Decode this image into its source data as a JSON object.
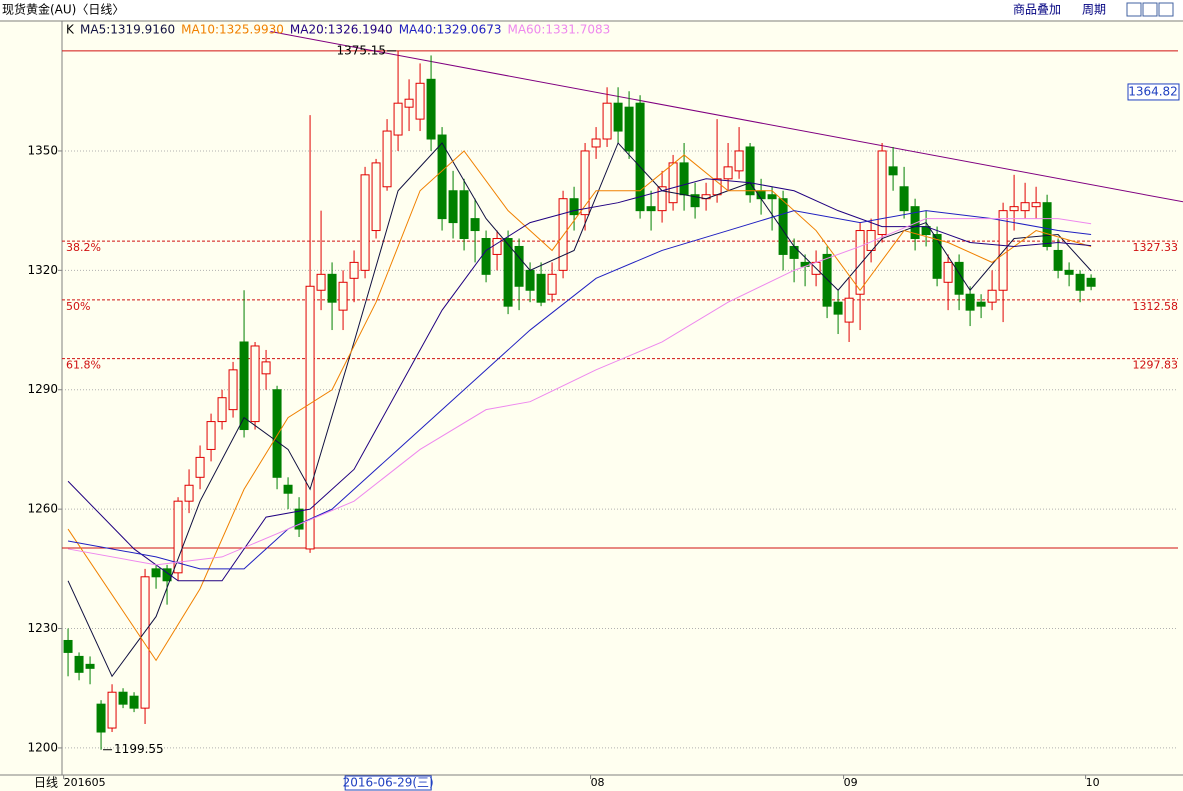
{
  "header": {
    "title": "现货黄金(AU)〈日线〉",
    "buttons": [
      "商品叠加",
      "周期"
    ]
  },
  "chart_data": {
    "type": "candlestick",
    "ylim": [
      1193.2,
      1382.4
    ],
    "yticks": [
      1200,
      1230,
      1260,
      1290,
      1320,
      1350
    ],
    "grid": true,
    "xlim": [
      -0.55,
      100.9
    ],
    "xticks": [
      {
        "value": -0.4,
        "label": "201605"
      },
      {
        "value": 47.5,
        "label": "08"
      },
      {
        "value": 70.5,
        "label": "09"
      },
      {
        "value": 92.5,
        "label": "10"
      }
    ],
    "period_label": "日线",
    "candles": {
      "name": "K",
      "up_color": "#e00000",
      "down_color": "#008000",
      "open": [
        1227,
        1223,
        1221,
        1211,
        1205,
        1214,
        1213,
        1210,
        1245,
        1245,
        1244,
        1262,
        1268,
        1275,
        1282,
        1285,
        1302,
        1282,
        1294,
        1290,
        1266,
        1260,
        1250,
        1315,
        1319,
        1310,
        1318,
        1320,
        1330,
        1341,
        1354,
        1361,
        1358,
        1368,
        1354,
        1340,
        1340,
        1333,
        1328,
        1324,
        1328,
        1326,
        1320,
        1319,
        1314,
        1320,
        1338,
        1334,
        1351,
        1353,
        1362,
        1361,
        1362,
        1336,
        1335,
        1337,
        1347,
        1339,
        1338,
        1339,
        1343,
        1345,
        1351,
        1340,
        1339,
        1338,
        1326,
        1322,
        1319,
        1324,
        1312,
        1307,
        1314,
        1325,
        1329,
        1346,
        1341,
        1336,
        1331,
        1329,
        1317,
        1322,
        1314,
        1312,
        1312,
        1315,
        1335,
        1335,
        1336,
        1337,
        1325,
        1320,
        1319,
        1318
      ],
      "high": [
        1230,
        1224,
        1223,
        1212,
        1216,
        1215,
        1214,
        1245,
        1246,
        1246,
        1263,
        1270,
        1276,
        1284,
        1290,
        1297,
        1315,
        1302,
        1300,
        1291,
        1268,
        1263,
        1359,
        1335,
        1322,
        1320,
        1325,
        1346,
        1348,
        1358,
        1375.15,
        1368,
        1372,
        1374,
        1356,
        1345,
        1343,
        1338,
        1330,
        1330,
        1330,
        1328,
        1322,
        1322,
        1322,
        1340,
        1341,
        1352,
        1356,
        1366,
        1366,
        1365,
        1364,
        1340,
        1345,
        1349,
        1352,
        1342,
        1342,
        1358,
        1352,
        1356,
        1352,
        1343,
        1341,
        1340,
        1328,
        1324,
        1325,
        1326,
        1315,
        1318,
        1332,
        1333,
        1352,
        1351,
        1346,
        1338,
        1335,
        1331,
        1324,
        1324,
        1316,
        1314,
        1320,
        1337,
        1344,
        1342,
        1341,
        1339,
        1328,
        1322,
        1320,
        1319
      ],
      "low": [
        1218,
        1217,
        1216,
        1199.55,
        1204,
        1210,
        1209,
        1206,
        1240,
        1236,
        1242,
        1259,
        1265,
        1272,
        1280,
        1283,
        1278,
        1280,
        1290,
        1265,
        1260,
        1253,
        1249,
        1310,
        1305,
        1305,
        1312,
        1318,
        1328,
        1340,
        1350,
        1355,
        1355,
        1350,
        1330,
        1328,
        1325,
        1322,
        1317,
        1320,
        1309,
        1310,
        1312,
        1311,
        1312,
        1318,
        1330,
        1330,
        1348,
        1351,
        1352,
        1348,
        1333,
        1330,
        1332,
        1335,
        1335,
        1333,
        1335,
        1337,
        1340,
        1343,
        1337,
        1334,
        1330,
        1320,
        1317,
        1316,
        1316,
        1308,
        1304,
        1302,
        1305,
        1322,
        1327,
        1340,
        1333,
        1325,
        1326,
        1316,
        1310,
        1310,
        1306,
        1308,
        1310,
        1307,
        1330,
        1333,
        1333,
        1325,
        1318,
        1316,
        1312,
        1315
      ],
      "close": [
        1224,
        1219,
        1220,
        1204,
        1214,
        1211,
        1210,
        1243,
        1243,
        1242,
        1262,
        1266,
        1273,
        1282,
        1288,
        1295,
        1280,
        1301,
        1297,
        1268,
        1264,
        1255,
        1316,
        1319,
        1312,
        1317,
        1322,
        1344,
        1347,
        1355,
        1362,
        1363,
        1367,
        1353,
        1333,
        1332,
        1328,
        1330,
        1319,
        1328,
        1311,
        1316,
        1315,
        1312,
        1319,
        1338,
        1334,
        1350,
        1353,
        1362,
        1355,
        1350,
        1335,
        1335,
        1341,
        1347,
        1339,
        1336,
        1339,
        1343,
        1346,
        1350,
        1339,
        1338,
        1338,
        1324,
        1323,
        1321,
        1322,
        1311,
        1309,
        1313,
        1330,
        1330,
        1350,
        1344,
        1335,
        1328,
        1329,
        1318,
        1322,
        1314,
        1310,
        1311,
        1315,
        1335,
        1336,
        1337,
        1337,
        1326,
        1320,
        1319,
        1315,
        1316
      ]
    },
    "series": [
      {
        "name": "MA5:1319.9160",
        "color": "#101040",
        "x": [
          0,
          4,
          8,
          12,
          16,
          20,
          22,
          26,
          30,
          34,
          38,
          42,
          46,
          50,
          54,
          58,
          62,
          66,
          70,
          74,
          78,
          82,
          86,
          90,
          93
        ],
        "values": [
          1242,
          1218,
          1233,
          1262,
          1283,
          1275,
          1265,
          1302,
          1340,
          1352,
          1333,
          1320,
          1325,
          1352,
          1340,
          1338,
          1342,
          1326,
          1315,
          1328,
          1332,
          1315,
          1328,
          1329,
          1319.9
        ]
      },
      {
        "name": "MA10:1325.9930",
        "color": "#f08000",
        "x": [
          0,
          8,
          12,
          16,
          20,
          24,
          28,
          32,
          36,
          40,
          44,
          48,
          52,
          56,
          60,
          64,
          68,
          72,
          76,
          80,
          84,
          88,
          93
        ],
        "values": [
          1255,
          1222,
          1240,
          1265,
          1283,
          1290,
          1312,
          1340,
          1350,
          1335,
          1325,
          1340,
          1340,
          1349,
          1340,
          1340,
          1330,
          1315,
          1330,
          1327,
          1322,
          1330,
          1326
        ]
      },
      {
        "name": "MA20:1326.1940",
        "color": "#200080",
        "x": [
          0,
          6,
          10,
          14,
          18,
          22,
          26,
          30,
          34,
          38,
          42,
          46,
          50,
          54,
          58,
          62,
          66,
          70,
          74,
          78,
          82,
          86,
          90,
          93
        ],
        "values": [
          1267,
          1250,
          1242,
          1242,
          1258,
          1260,
          1270,
          1290,
          1310,
          1325,
          1332,
          1335,
          1337,
          1340,
          1343,
          1342,
          1340,
          1335,
          1331,
          1331,
          1327,
          1326,
          1327,
          1326.2
        ]
      },
      {
        "name": "MA40:1329.0673",
        "color": "#2020c0",
        "x": [
          0,
          8,
          12,
          16,
          20,
          24,
          30,
          36,
          42,
          48,
          54,
          60,
          66,
          72,
          78,
          84,
          90,
          93
        ],
        "values": [
          1252,
          1248,
          1245,
          1245,
          1255,
          1260,
          1275,
          1290,
          1305,
          1318,
          1325,
          1330,
          1335,
          1332,
          1335,
          1333,
          1330,
          1329
        ]
      },
      {
        "name": "MA60:1331.7083",
        "color": "#ee88ee",
        "x": [
          0,
          8,
          14,
          20,
          26,
          32,
          38,
          42,
          48,
          54,
          60,
          66,
          72,
          78,
          84,
          90,
          93
        ],
        "values": [
          1250,
          1246,
          1248,
          1255,
          1262,
          1275,
          1285,
          1287,
          1295,
          1302,
          1312,
          1320,
          1326,
          1333,
          1333,
          1333,
          1331.7
        ]
      }
    ],
    "hlines": [
      1375.15,
      1250.25
    ],
    "fib_levels": [
      {
        "label": "38.2%",
        "value": 1327.33
      },
      {
        "label": "50%",
        "value": 1312.58
      },
      {
        "label": "61.8%",
        "value": 1297.83
      }
    ],
    "trendline": {
      "x": [
        18.4,
        101.4
      ],
      "values": [
        1380,
        1337.2
      ]
    },
    "high_mark": {
      "x": 30,
      "value": 1375.15
    },
    "low_mark": {
      "x": 3,
      "value": 1199.55
    },
    "cursor": {
      "x": 29.1,
      "date": "2016-06-29(三)",
      "price": 1364.82
    }
  }
}
